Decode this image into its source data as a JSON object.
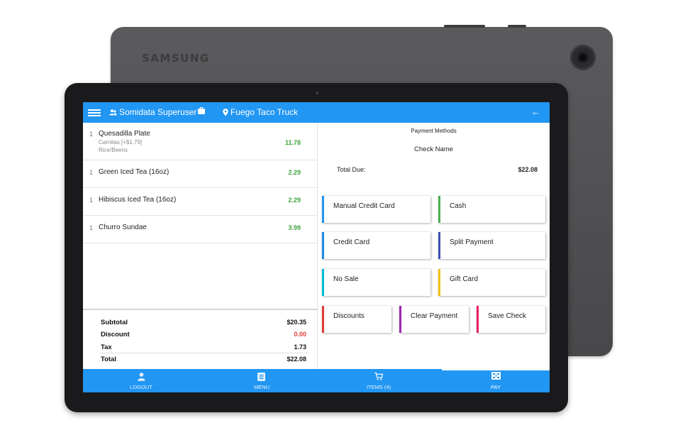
{
  "device": {
    "brand": "SAMSUNG"
  },
  "appbar": {
    "user": "Somidata Superuser",
    "location": "Fuego Taco Truck"
  },
  "order": {
    "items": [
      {
        "qty": "1",
        "name": "Quesadilla Plate",
        "modifiers": [
          "Carnitas [+$1.79]",
          "Rice/Beens"
        ],
        "price": "11.78"
      },
      {
        "qty": "1",
        "name": "Green Iced Tea (16oz)",
        "modifiers": [],
        "price": "2.29"
      },
      {
        "qty": "1",
        "name": "Hibiscus Iced Tea (16oz)",
        "modifiers": [],
        "price": "2.29"
      },
      {
        "qty": "1",
        "name": "Churro Sundae",
        "modifiers": [],
        "price": "3.99"
      }
    ],
    "totals": {
      "subtotal_label": "Subtotal",
      "subtotal": "$20.35",
      "discount_label": "Discount",
      "discount": "0.00",
      "tax_label": "Tax",
      "tax": "1.73",
      "total_label": "Total",
      "total": "$22.08"
    }
  },
  "payment": {
    "title": "Payment Methods",
    "check_name": "Check Name",
    "total_due_label": "Total Due:",
    "total_due": "$22.08",
    "buttons": [
      {
        "label": "Manual Credit Card",
        "accent": "#2196f3"
      },
      {
        "label": "Cash",
        "accent": "#4caf50"
      },
      {
        "label": "Credit Card",
        "accent": "#1e88e5"
      },
      {
        "label": "Split Payment",
        "accent": "#3f51b5"
      },
      {
        "label": "No Sale",
        "accent": "#00bcd4"
      },
      {
        "label": "Gift Card",
        "accent": "#f4c20d"
      },
      {
        "label": "Discounts",
        "accent": "#e53935"
      },
      {
        "label": "Clear Payment",
        "accent": "#9c27b0"
      },
      {
        "label": "Save Check",
        "accent": "#e91e63"
      }
    ]
  },
  "bottom_nav": {
    "items": [
      {
        "label": "LOGOUT",
        "icon": "person-icon"
      },
      {
        "label": "MENU",
        "icon": "menu-list-icon"
      },
      {
        "label": "ITEMS (4)",
        "icon": "cart-icon"
      },
      {
        "label": "PAY",
        "icon": "cash-register-icon",
        "active": true
      }
    ]
  },
  "colors": {
    "primary": "#2196f3",
    "price_green": "#3aa43a",
    "discount_red": "#e53935"
  }
}
